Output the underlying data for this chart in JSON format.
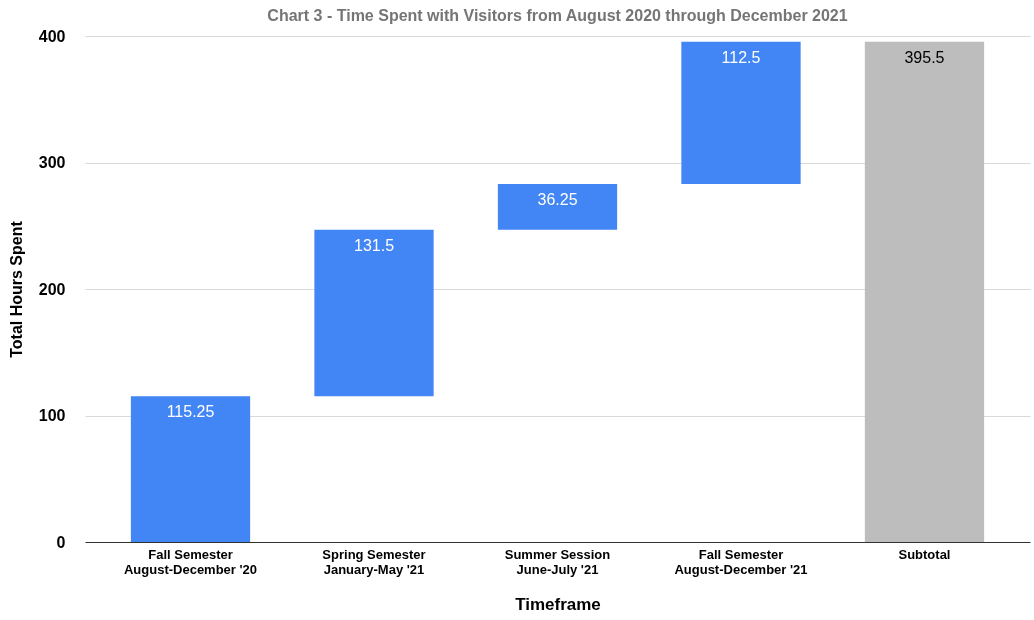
{
  "chart_data": {
    "type": "bar",
    "title": "Chart 3 - Time Spent with Visitors from August 2020 through December 2021",
    "xlabel": "Timeframe",
    "ylabel": "Total Hours Spent",
    "categories": [
      "Fall Semester\nAugust-December '20",
      "Spring Semester\nJanuary-May '21",
      "Summer Session\nJune-July '21",
      "Fall Semester\nAugust-December '21",
      "Subtotal"
    ],
    "values": [
      115.25,
      131.5,
      36.25,
      112.5,
      395.5
    ],
    "base": [
      0,
      115.25,
      246.75,
      283,
      0
    ],
    "colors": [
      "#4285f4",
      "#4285f4",
      "#4285f4",
      "#4285f4",
      "#bdbdbd"
    ],
    "ylim": [
      0,
      400
    ],
    "yticks": [
      0,
      100,
      200,
      300,
      400
    ],
    "grid": "y",
    "data_labels": true
  }
}
